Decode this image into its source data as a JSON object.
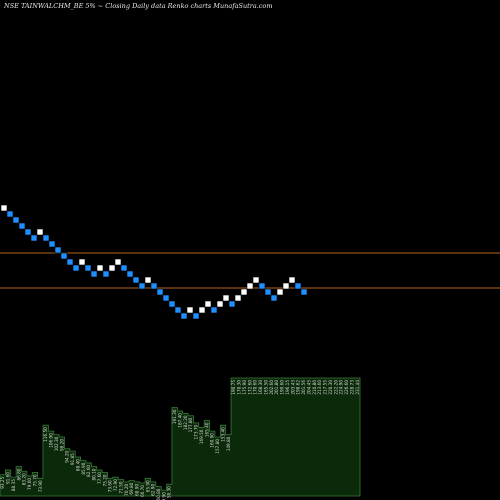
{
  "header": {
    "title": "NSE TAINWALCHM_BE 5% ~  Closing Daily data  Renko  charts MunafaSutra.com"
  },
  "colors": {
    "background": "#000000",
    "up_brick": "#ffffff",
    "down_brick": "#1e90ff",
    "level_line": "#b5651d",
    "volume_fill": "#0a2a0a",
    "volume_stroke": "#3a7a3a"
  },
  "chart_data": {
    "type": "renko",
    "brick_directions": [
      "up",
      "down",
      "down",
      "down",
      "down",
      "down",
      "up",
      "down",
      "down",
      "down",
      "down",
      "down",
      "down",
      "up",
      "down",
      "down",
      "up",
      "down",
      "up",
      "up",
      "down",
      "down",
      "down",
      "down",
      "up",
      "down",
      "down",
      "down",
      "down",
      "down",
      "down",
      "up",
      "down",
      "up",
      "up",
      "down",
      "up",
      "up",
      "down",
      "up",
      "up",
      "up",
      "up",
      "down",
      "down",
      "down",
      "up",
      "up",
      "up",
      "down",
      "down"
    ],
    "levels": [
      1,
      0.5
    ],
    "volume": {
      "values": [
        0.18,
        0.22,
        0.16,
        0.25,
        0.21,
        0.17,
        0.2,
        0.15,
        0.6,
        0.55,
        0.52,
        0.5,
        0.4,
        0.38,
        0.33,
        0.3,
        0.28,
        0.25,
        0.22,
        0.2,
        0.15,
        0.16,
        0.14,
        0.12,
        0.13,
        0.12,
        0.11,
        0.15,
        0.12,
        0.08,
        0.05,
        0.1,
        0.75,
        0.72,
        0.7,
        0.68,
        0.62,
        0.58,
        0.64,
        0.55,
        0.5,
        0.6,
        0.52,
        1,
        1,
        1,
        1,
        1,
        1,
        1,
        1,
        1,
        1,
        1,
        1,
        1,
        1,
        1,
        1,
        1,
        1,
        1,
        1,
        1,
        1,
        1,
        1
      ],
      "labels": [
        "93.25",
        "91.60",
        "88.35",
        "86.80",
        "83.20",
        "79.60",
        "75.70",
        "73.90",
        "116.50",
        "106.90",
        "102.30",
        "98.20",
        "94.20",
        "91.85",
        "88.40",
        "85.90",
        "82.60",
        "80.10",
        "77.60",
        "75.20",
        "73.60",
        "72.90",
        "71.50",
        "70.20",
        "69.80",
        "68.90",
        "66.70",
        "65.90",
        "62.90",
        "60.80",
        "59.90",
        "58.30",
        "191.30",
        "187.40",
        "182.20",
        "177.80",
        "173.70",
        "169.50",
        "165.40",
        "160.90",
        "157.80",
        "153.40",
        "149.80",
        "190.75",
        "178.30",
        "175.90",
        "172.60",
        "170.60",
        "168.30",
        "165.50",
        "202.60",
        "201.80",
        "199.60",
        "196.15",
        "203.43",
        "198.62",
        "201.56",
        "204.45",
        "210.80",
        "213.60",
        "217.55",
        "220.30",
        "222.20",
        "224.90",
        "226.60",
        "228.73",
        "231.44"
      ]
    }
  }
}
